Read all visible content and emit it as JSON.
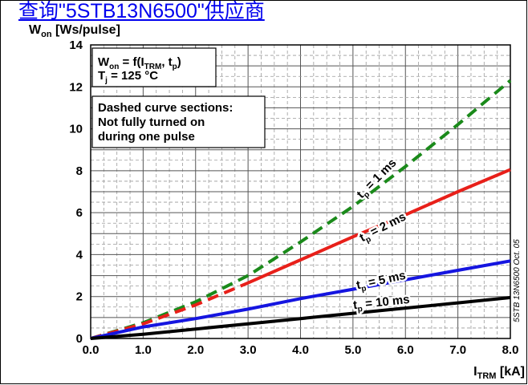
{
  "link_text": "查询\"5STB13N6500\"供应商",
  "chart_data": {
    "type": "line",
    "ylabel": {
      "base": "W",
      "sub": "on",
      "rest": " [Ws/pulse]"
    },
    "xlabel": {
      "base": "I",
      "sub": "TRM",
      "rest": " [kA]"
    },
    "xlim": [
      0,
      8
    ],
    "ylim": [
      0,
      14
    ],
    "x_ticks": [
      "0.0",
      "1.0",
      "2.0",
      "3.0",
      "4.0",
      "5.0",
      "6.0",
      "7.0",
      "8.0"
    ],
    "y_ticks": [
      "0",
      "2",
      "4",
      "6",
      "8",
      "10",
      "12",
      "14"
    ],
    "grid": true,
    "box1": {
      "line1": {
        "pre": "W",
        "sub1": "on",
        "mid": " = f(I",
        "sub2": "TRM",
        "mid2": ", t",
        "sub3": "p",
        "post": ")"
      },
      "line2": {
        "pre": "T",
        "sub": "j",
        "post": " = 125 °C"
      }
    },
    "box2": [
      "Dashed curve sections:",
      "Not fully turned on",
      "during one pulse"
    ],
    "side_note": "5STB 13N6500 Oct. 05",
    "series": [
      {
        "name": "tp = 1 ms",
        "label": {
          "t": "t",
          "sub": "p",
          "rest": " = 1 ms"
        },
        "color": "#1a8a1a",
        "dashed": true,
        "points": [
          [
            0,
            0
          ],
          [
            1,
            0.75
          ],
          [
            2,
            1.75
          ],
          [
            3,
            3.0
          ],
          [
            4,
            4.6
          ],
          [
            5,
            6.3
          ],
          [
            6,
            8.2
          ],
          [
            7,
            10.2
          ],
          [
            8,
            12.3
          ]
        ],
        "label_pos": [
          5.5,
          7.5
        ],
        "label_angle": -45
      },
      {
        "name": "tp = 2 ms",
        "label": {
          "t": "t",
          "sub": "p",
          "rest": " = 2 ms"
        },
        "color": "#e8201a",
        "dashed_until": 3.0,
        "points": [
          [
            0,
            0
          ],
          [
            1,
            0.7
          ],
          [
            2,
            1.6
          ],
          [
            3,
            2.65
          ],
          [
            4,
            3.75
          ],
          [
            5,
            4.85
          ],
          [
            6,
            5.9
          ],
          [
            7,
            7.0
          ],
          [
            8,
            8.05
          ]
        ],
        "label_pos": [
          5.6,
          5.15
        ],
        "label_angle": -27
      },
      {
        "name": "tp = 5 ms",
        "label": {
          "t": "t",
          "sub": "p",
          "rest": " = 5 ms"
        },
        "color": "#1515e0",
        "dashed": false,
        "points": [
          [
            0,
            0
          ],
          [
            1,
            0.55
          ],
          [
            2,
            0.95
          ],
          [
            3,
            1.4
          ],
          [
            4,
            1.9
          ],
          [
            5,
            2.35
          ],
          [
            6,
            2.8
          ],
          [
            7,
            3.25
          ],
          [
            8,
            3.7
          ]
        ],
        "label_pos": [
          5.55,
          2.6
        ],
        "label_angle": -12
      },
      {
        "name": "tp = 10 ms",
        "label": {
          "t": "t",
          "sub": "p",
          "rest": " = 10 ms"
        },
        "color": "#000000",
        "dashed": false,
        "points": [
          [
            0,
            0
          ],
          [
            1,
            0.2
          ],
          [
            2,
            0.45
          ],
          [
            3,
            0.7
          ],
          [
            4,
            0.95
          ],
          [
            5,
            1.2
          ],
          [
            6,
            1.45
          ],
          [
            7,
            1.7
          ],
          [
            8,
            1.95
          ]
        ],
        "label_pos": [
          5.55,
          1.55
        ],
        "label_angle": -6
      }
    ]
  }
}
